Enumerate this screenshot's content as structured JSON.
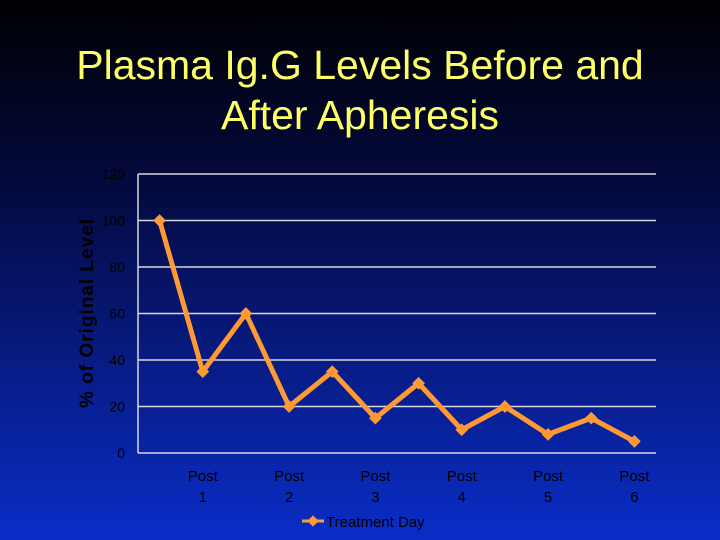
{
  "slide": {
    "title_line1": "Plasma Ig.G Levels Before and",
    "title_line2": "After Apheresis"
  },
  "colors": {
    "title": "#ffff66",
    "line": "#ff9933",
    "marker": "#ff9933",
    "grid": "#d8d8d8",
    "axis_text": "#000000",
    "ylabel": "#000000"
  },
  "chart_data": {
    "type": "line",
    "ylabel": "% of Original Level",
    "xlabel": "",
    "ylim": [
      0,
      120
    ],
    "yticks": [
      0,
      20,
      40,
      60,
      80,
      100,
      120
    ],
    "grid": true,
    "x": [
      0,
      1,
      2,
      3,
      4,
      5,
      6,
      7,
      8,
      9,
      10,
      11
    ],
    "x_tick_labels": [
      {
        "x": 1,
        "line1": "Post",
        "line2": "1"
      },
      {
        "x": 3,
        "line1": "Post",
        "line2": "2"
      },
      {
        "x": 5,
        "line1": "Post",
        "line2": "3"
      },
      {
        "x": 7,
        "line1": "Post",
        "line2": "4"
      },
      {
        "x": 9,
        "line1": "Post",
        "line2": "5"
      },
      {
        "x": 11,
        "line1": "Post",
        "line2": "6"
      }
    ],
    "series": [
      {
        "name": "Treatment Day",
        "values": [
          100,
          35,
          60,
          20,
          35,
          15,
          30,
          10,
          20,
          8,
          15,
          5
        ]
      }
    ],
    "legend": {
      "position": "bottom"
    }
  }
}
